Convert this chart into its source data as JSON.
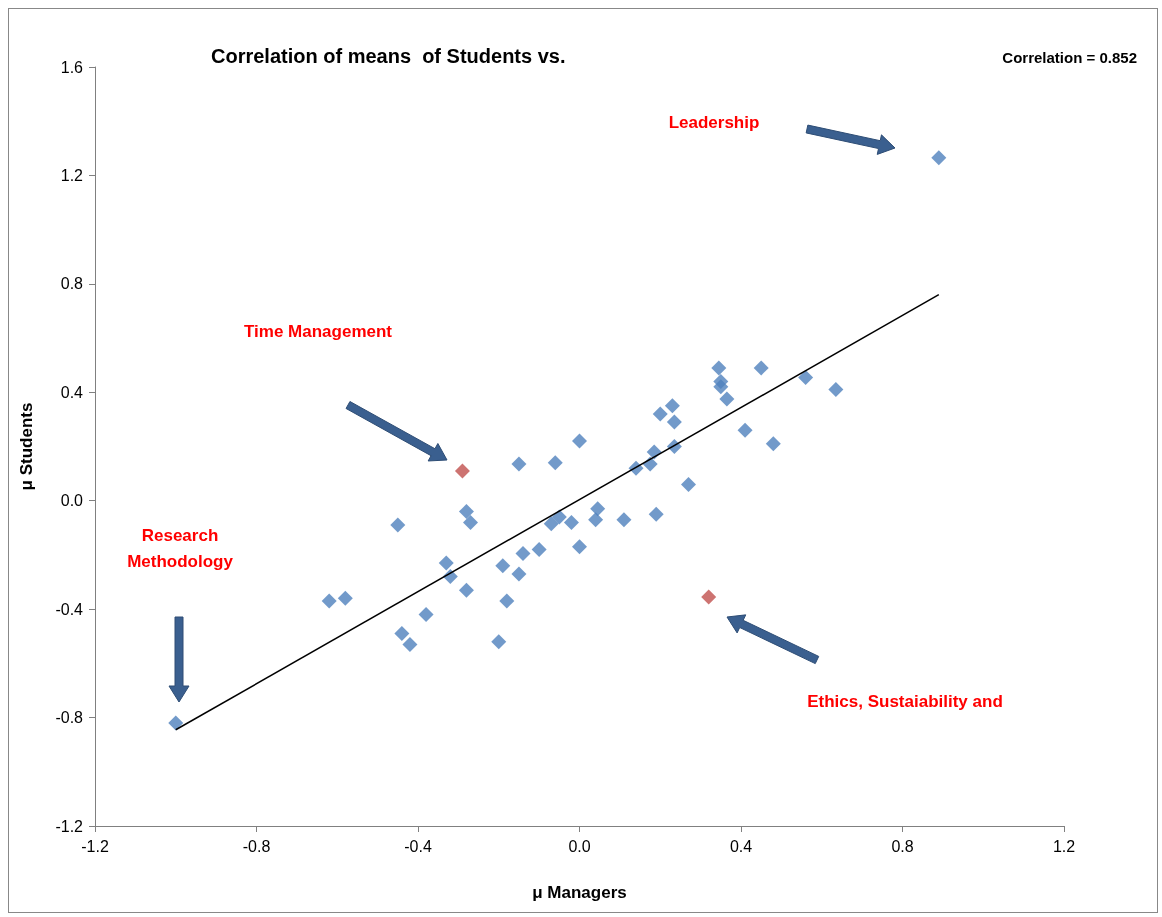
{
  "chart_data": {
    "type": "scatter",
    "title": "Correlation of means  of Students vs.",
    "xlabel": "μ Managers",
    "ylabel": "μ Students",
    "marker": "diamond",
    "grid": false,
    "xlim": [
      -1.2,
      1.2
    ],
    "xticks": [
      -1.2,
      -0.8,
      -0.4,
      {
        "value": 0,
        "label": "0.0"
      },
      0.4,
      0.8,
      1.2
    ],
    "ylim": [
      -1.2,
      1.6
    ],
    "yticks": [
      -1.2,
      -0.8,
      -0.4,
      {
        "value": 0,
        "label": "0.0"
      },
      0.4,
      0.8,
      1.2,
      1.6
    ],
    "series": [
      {
        "color": "#4f81bd",
        "x": [
          -1.0,
          -0.62,
          -0.58,
          -0.45,
          -0.44,
          -0.42,
          -0.38,
          -0.33,
          -0.32,
          -0.28,
          -0.28,
          -0.27,
          -0.2,
          -0.19,
          -0.18,
          -0.15,
          -0.15,
          -0.14,
          -0.1,
          -0.07,
          -0.06,
          -0.05,
          -0.02,
          0.0,
          0.0,
          0.04,
          0.045,
          0.11,
          0.14,
          0.175,
          0.185,
          0.19,
          0.2,
          0.23,
          0.235,
          0.235,
          0.27,
          0.345,
          0.35,
          0.35,
          0.365,
          0.41,
          0.45,
          0.48,
          0.56,
          0.635,
          0.89
        ],
        "values": [
          -0.82,
          -0.37,
          -0.36,
          -0.09,
          -0.49,
          -0.53,
          -0.42,
          -0.23,
          -0.28,
          -0.33,
          -0.04,
          -0.08,
          -0.52,
          -0.24,
          -0.37,
          0.135,
          -0.27,
          -0.195,
          -0.18,
          -0.085,
          0.14,
          -0.06,
          -0.08,
          0.22,
          -0.17,
          -0.07,
          -0.03,
          -0.07,
          0.12,
          0.135,
          0.18,
          -0.05,
          0.32,
          0.35,
          0.29,
          0.2,
          0.06,
          0.49,
          0.44,
          0.42,
          0.375,
          0.26,
          0.49,
          0.21,
          0.455,
          0.41,
          1.265
        ]
      },
      {
        "color": "#c0504d",
        "x": [
          -0.29,
          0.32
        ],
        "values": [
          0.11,
          -0.355
        ]
      },
      {
        "type": "line",
        "color": "#000000",
        "marker": "none",
        "x": [
          -1.0,
          0.89
        ],
        "values": [
          -0.845,
          0.76
        ]
      }
    ],
    "annotations": [
      "Correlation = 0.852",
      "Leadership",
      "Time Management",
      "Research\nMethodology",
      "Ethics, Sustaiability and"
    ]
  }
}
